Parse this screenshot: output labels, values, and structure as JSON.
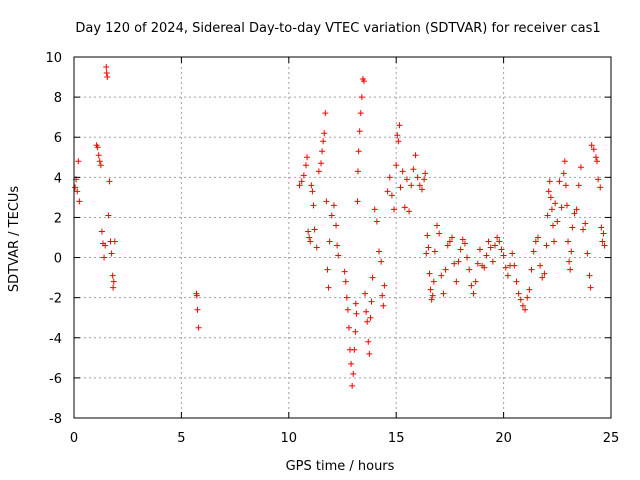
{
  "chart_data": {
    "type": "scatter",
    "title": "Day 120 of 2024, Sidereal Day-to-day VTEC variation (SDTVAR) for receiver cas1",
    "xlabel": "GPS time / hours",
    "ylabel": "SDTVAR / TECUs",
    "xlim": [
      0,
      25
    ],
    "ylim": [
      -8,
      10
    ],
    "xticks": [
      0,
      5,
      10,
      15,
      20,
      25
    ],
    "yticks": [
      -8,
      -6,
      -4,
      -2,
      0,
      2,
      4,
      6,
      8,
      10
    ],
    "grid": true,
    "marker": "+",
    "color": "#ff0000",
    "series": [
      {
        "name": "SDTVAR",
        "points": [
          [
            0.05,
            3.5
          ],
          [
            0.1,
            3.9
          ],
          [
            0.15,
            3.3
          ],
          [
            0.2,
            4.8
          ],
          [
            0.25,
            2.8
          ],
          [
            1.05,
            5.6
          ],
          [
            1.1,
            5.5
          ],
          [
            1.15,
            5.1
          ],
          [
            1.2,
            4.8
          ],
          [
            1.25,
            4.6
          ],
          [
            1.3,
            1.3
          ],
          [
            1.35,
            0.7
          ],
          [
            1.4,
            0.0
          ],
          [
            1.45,
            0.6
          ],
          [
            1.5,
            9.5
          ],
          [
            1.52,
            9.2
          ],
          [
            1.55,
            9.0
          ],
          [
            1.6,
            2.1
          ],
          [
            1.65,
            3.8
          ],
          [
            1.7,
            0.8
          ],
          [
            1.75,
            0.2
          ],
          [
            1.8,
            -0.9
          ],
          [
            1.82,
            -1.5
          ],
          [
            1.85,
            -1.2
          ],
          [
            1.9,
            0.8
          ],
          [
            5.7,
            -1.8
          ],
          [
            5.72,
            -1.9
          ],
          [
            5.75,
            -2.6
          ],
          [
            5.8,
            -3.5
          ],
          [
            10.5,
            3.6
          ],
          [
            10.6,
            3.8
          ],
          [
            10.7,
            4.1
          ],
          [
            10.8,
            4.6
          ],
          [
            10.85,
            5.0
          ],
          [
            10.9,
            1.3
          ],
          [
            10.95,
            1.0
          ],
          [
            11.0,
            0.8
          ],
          [
            11.05,
            3.6
          ],
          [
            11.1,
            3.3
          ],
          [
            11.15,
            2.6
          ],
          [
            11.2,
            1.4
          ],
          [
            11.3,
            0.5
          ],
          [
            11.4,
            4.3
          ],
          [
            11.5,
            4.7
          ],
          [
            11.55,
            5.3
          ],
          [
            11.6,
            5.8
          ],
          [
            11.65,
            6.2
          ],
          [
            11.7,
            7.2
          ],
          [
            11.75,
            2.8
          ],
          [
            11.8,
            -0.6
          ],
          [
            11.85,
            -1.5
          ],
          [
            11.9,
            0.8
          ],
          [
            12.0,
            2.1
          ],
          [
            12.1,
            2.6
          ],
          [
            12.2,
            1.6
          ],
          [
            12.25,
            0.6
          ],
          [
            12.3,
            0.1
          ],
          [
            12.6,
            -0.7
          ],
          [
            12.65,
            -1.2
          ],
          [
            12.7,
            -2.0
          ],
          [
            12.75,
            -2.6
          ],
          [
            12.8,
            -3.5
          ],
          [
            12.85,
            -4.6
          ],
          [
            12.9,
            -5.3
          ],
          [
            12.95,
            -6.4
          ],
          [
            13.0,
            -5.8
          ],
          [
            13.05,
            -4.6
          ],
          [
            13.1,
            -3.7
          ],
          [
            13.12,
            -2.3
          ],
          [
            13.15,
            -2.8
          ],
          [
            13.2,
            2.8
          ],
          [
            13.22,
            4.3
          ],
          [
            13.25,
            5.3
          ],
          [
            13.3,
            6.3
          ],
          [
            13.35,
            7.2
          ],
          [
            13.4,
            8.0
          ],
          [
            13.45,
            8.9
          ],
          [
            13.5,
            8.8
          ],
          [
            13.55,
            -1.8
          ],
          [
            13.6,
            -2.7
          ],
          [
            13.65,
            -3.2
          ],
          [
            13.7,
            -4.2
          ],
          [
            13.75,
            -4.8
          ],
          [
            13.8,
            -3.0
          ],
          [
            13.85,
            -2.2
          ],
          [
            13.9,
            -1.0
          ],
          [
            14.0,
            2.4
          ],
          [
            14.1,
            1.8
          ],
          [
            14.2,
            0.3
          ],
          [
            14.3,
            -0.2
          ],
          [
            14.35,
            -1.9
          ],
          [
            14.4,
            -2.4
          ],
          [
            14.45,
            -1.4
          ],
          [
            14.6,
            3.3
          ],
          [
            14.7,
            4.0
          ],
          [
            14.8,
            3.1
          ],
          [
            14.9,
            2.4
          ],
          [
            15.0,
            4.6
          ],
          [
            15.05,
            6.1
          ],
          [
            15.1,
            5.8
          ],
          [
            15.15,
            6.6
          ],
          [
            15.2,
            3.5
          ],
          [
            15.3,
            4.3
          ],
          [
            15.4,
            2.5
          ],
          [
            15.5,
            3.9
          ],
          [
            15.6,
            2.3
          ],
          [
            15.7,
            3.6
          ],
          [
            15.8,
            4.4
          ],
          [
            15.9,
            5.1
          ],
          [
            16.0,
            4.0
          ],
          [
            16.1,
            3.6
          ],
          [
            16.2,
            3.4
          ],
          [
            16.3,
            3.9
          ],
          [
            16.35,
            4.2
          ],
          [
            16.4,
            0.2
          ],
          [
            16.45,
            1.1
          ],
          [
            16.5,
            0.5
          ],
          [
            16.55,
            -0.8
          ],
          [
            16.6,
            -1.6
          ],
          [
            16.65,
            -2.1
          ],
          [
            16.7,
            -1.9
          ],
          [
            16.75,
            -1.2
          ],
          [
            16.8,
            0.3
          ],
          [
            16.9,
            1.6
          ],
          [
            17.0,
            1.2
          ],
          [
            17.1,
            -0.9
          ],
          [
            17.2,
            -1.8
          ],
          [
            17.3,
            -0.6
          ],
          [
            17.4,
            0.6
          ],
          [
            17.5,
            0.8
          ],
          [
            17.6,
            1.0
          ],
          [
            17.7,
            -0.3
          ],
          [
            17.8,
            -1.2
          ],
          [
            17.9,
            -0.2
          ],
          [
            18.0,
            0.4
          ],
          [
            18.1,
            0.9
          ],
          [
            18.2,
            0.7
          ],
          [
            18.3,
            0.0
          ],
          [
            18.4,
            -0.6
          ],
          [
            18.5,
            -1.4
          ],
          [
            18.6,
            -1.8
          ],
          [
            18.7,
            -1.2
          ],
          [
            18.8,
            -0.3
          ],
          [
            18.9,
            0.4
          ],
          [
            19.0,
            -0.4
          ],
          [
            19.1,
            -0.5
          ],
          [
            19.2,
            0.1
          ],
          [
            19.3,
            0.8
          ],
          [
            19.4,
            0.5
          ],
          [
            19.5,
            -0.2
          ],
          [
            19.6,
            0.6
          ],
          [
            19.7,
            1.0
          ],
          [
            19.8,
            0.8
          ],
          [
            19.9,
            0.4
          ],
          [
            20.0,
            0.1
          ],
          [
            20.1,
            -0.5
          ],
          [
            20.2,
            -0.9
          ],
          [
            20.3,
            -0.4
          ],
          [
            20.4,
            0.2
          ],
          [
            20.5,
            -0.4
          ],
          [
            20.6,
            -1.2
          ],
          [
            20.7,
            -1.8
          ],
          [
            20.8,
            -2.1
          ],
          [
            20.9,
            -2.4
          ],
          [
            21.0,
            -2.6
          ],
          [
            21.1,
            -2.0
          ],
          [
            21.2,
            -1.6
          ],
          [
            21.3,
            -0.6
          ],
          [
            21.4,
            0.3
          ],
          [
            21.5,
            0.8
          ],
          [
            21.6,
            1.0
          ],
          [
            21.7,
            -0.4
          ],
          [
            21.8,
            -1.0
          ],
          [
            21.9,
            -0.8
          ],
          [
            22.0,
            0.6
          ],
          [
            22.05,
            2.1
          ],
          [
            22.1,
            3.3
          ],
          [
            22.15,
            3.8
          ],
          [
            22.2,
            3.0
          ],
          [
            22.25,
            2.4
          ],
          [
            22.3,
            1.6
          ],
          [
            22.35,
            0.8
          ],
          [
            22.4,
            2.7
          ],
          [
            22.5,
            1.8
          ],
          [
            22.6,
            3.8
          ],
          [
            22.7,
            2.5
          ],
          [
            22.8,
            4.2
          ],
          [
            22.85,
            4.8
          ],
          [
            22.9,
            3.6
          ],
          [
            22.95,
            2.6
          ],
          [
            23.0,
            0.8
          ],
          [
            23.05,
            -0.2
          ],
          [
            23.1,
            -0.6
          ],
          [
            23.15,
            0.3
          ],
          [
            23.2,
            1.5
          ],
          [
            23.3,
            2.2
          ],
          [
            23.4,
            2.4
          ],
          [
            23.5,
            3.6
          ],
          [
            23.6,
            4.5
          ],
          [
            23.7,
            1.4
          ],
          [
            23.8,
            1.7
          ],
          [
            23.9,
            0.2
          ],
          [
            24.0,
            -0.9
          ],
          [
            24.05,
            -1.5
          ],
          [
            24.1,
            5.6
          ],
          [
            24.2,
            5.4
          ],
          [
            24.3,
            5.0
          ],
          [
            24.35,
            4.8
          ],
          [
            24.4,
            3.9
          ],
          [
            24.5,
            3.5
          ],
          [
            24.55,
            1.5
          ],
          [
            24.6,
            0.8
          ],
          [
            24.65,
            1.2
          ],
          [
            24.7,
            0.6
          ]
        ]
      }
    ]
  }
}
